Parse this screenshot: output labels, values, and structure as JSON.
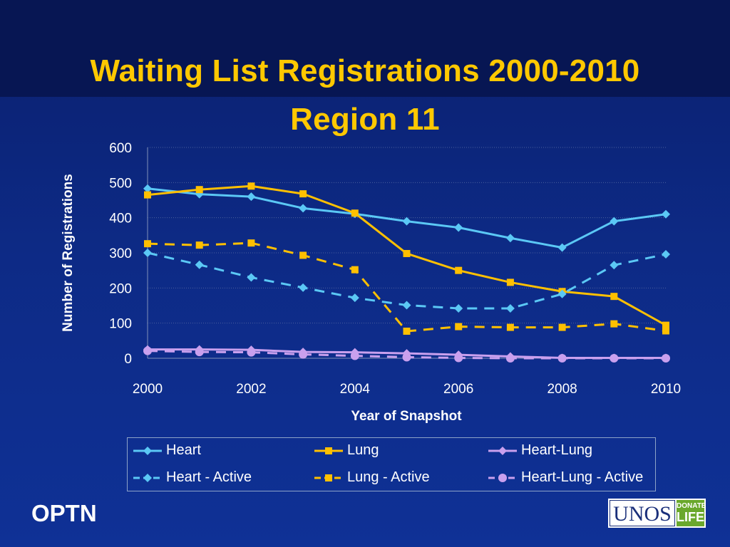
{
  "slide": {
    "title_line1": "Waiting List Registrations 2000-2010",
    "title_line2": "Region 11",
    "footer_left": "OPTN",
    "logo_text": "UNOS",
    "logo_badge_top": "DONATE",
    "logo_badge_bottom": "LIFE"
  },
  "chart_data": {
    "type": "line",
    "xlabel": "Year of Snapshot",
    "ylabel": "Number of Registrations",
    "x": [
      2000,
      2001,
      2002,
      2003,
      2004,
      2005,
      2006,
      2007,
      2008,
      2009,
      2010
    ],
    "xticks": [
      2000,
      2002,
      2004,
      2006,
      2008,
      2010
    ],
    "xlim": [
      2000,
      2010
    ],
    "ylim": [
      0,
      600
    ],
    "yticks": [
      0,
      100,
      200,
      300,
      400,
      500,
      600
    ],
    "grid": "horizontal",
    "legend_position": "bottom",
    "series": [
      {
        "name": "Heart",
        "color": "#5bc8f5",
        "dash": "solid",
        "marker": "diamond",
        "values": [
          483,
          467,
          460,
          427,
          411,
          390,
          372,
          342,
          315,
          390,
          410
        ]
      },
      {
        "name": "Lung",
        "color": "#ffc000",
        "dash": "solid",
        "marker": "square",
        "values": [
          465,
          480,
          490,
          468,
          413,
          298,
          250,
          216,
          190,
          176,
          94
        ]
      },
      {
        "name": "Heart-Lung",
        "color": "#c9a0ee",
        "dash": "solid",
        "marker": "diamond",
        "values": [
          25,
          25,
          24,
          18,
          17,
          14,
          10,
          5,
          1,
          1,
          1
        ]
      },
      {
        "name": "Heart - Active",
        "color": "#5bc8f5",
        "dash": "dashed",
        "marker": "diamond",
        "values": [
          300,
          266,
          230,
          201,
          172,
          151,
          142,
          142,
          183,
          265,
          296
        ]
      },
      {
        "name": "Lung - Active",
        "color": "#ffc000",
        "dash": "dashed",
        "marker": "square",
        "values": [
          326,
          322,
          328,
          293,
          252,
          77,
          90,
          88,
          88,
          98,
          78
        ]
      },
      {
        "name": "Heart-Lung - Active",
        "color": "#c9a0ee",
        "dash": "dashed",
        "marker": "circle",
        "values": [
          21,
          18,
          17,
          11,
          7,
          3,
          1,
          0,
          0,
          0,
          0
        ]
      }
    ]
  }
}
